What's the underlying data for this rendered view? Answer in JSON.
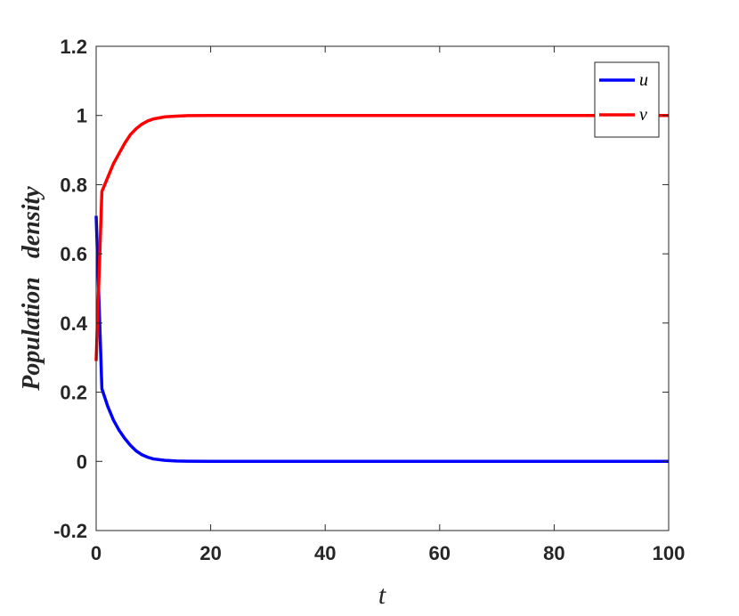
{
  "chart_data": {
    "type": "line",
    "xlabel": "t",
    "ylabel": "Population   density",
    "xlim": [
      0,
      100
    ],
    "ylim": [
      -0.2,
      1.2
    ],
    "xticks": [
      "0",
      "20",
      "40",
      "60",
      "80",
      "100"
    ],
    "yticks": [
      "-0.2",
      "0",
      "0.2",
      "0.4",
      "0.6",
      "0.8",
      "1",
      "1.2"
    ],
    "legend_position": "top-right",
    "grid": false,
    "series": [
      {
        "name": "u",
        "color": "#0000ff",
        "x": [
          0,
          1,
          2,
          3,
          4,
          5,
          6,
          7,
          8,
          9,
          10,
          12,
          14,
          16,
          20,
          30,
          40,
          60,
          80,
          100
        ],
        "y": [
          0.71,
          0.21,
          0.16,
          0.12,
          0.09,
          0.066,
          0.046,
          0.03,
          0.019,
          0.012,
          0.007,
          0.003,
          0.001,
          0.0005,
          0.0,
          0.0,
          0.0,
          0.0,
          0.0,
          0.0
        ]
      },
      {
        "name": "v",
        "color": "#ff0000",
        "x": [
          0,
          1,
          2,
          3,
          4,
          5,
          6,
          7,
          8,
          9,
          10,
          12,
          14,
          16,
          20,
          30,
          40,
          60,
          80,
          100
        ],
        "y": [
          0.29,
          0.78,
          0.82,
          0.86,
          0.89,
          0.92,
          0.945,
          0.962,
          0.975,
          0.984,
          0.99,
          0.996,
          0.998,
          0.9995,
          1.0,
          1.0,
          1.0,
          1.0,
          1.0,
          1.0
        ]
      }
    ]
  }
}
